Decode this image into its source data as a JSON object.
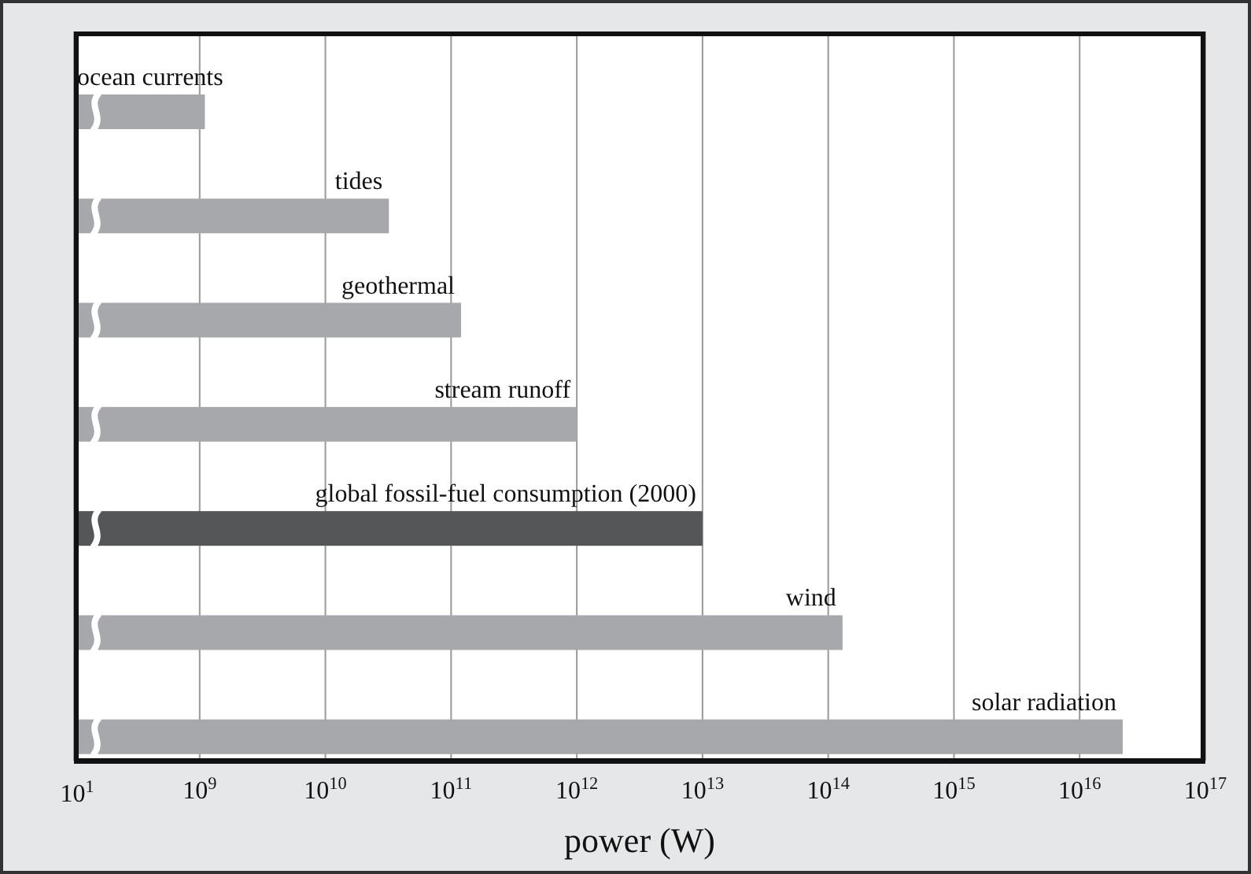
{
  "chart_data": {
    "type": "bar",
    "orientation": "horizontal",
    "log": "x",
    "categories": [
      "ocean currents",
      "tides",
      "geothermal",
      "stream runoff",
      "global fossil-fuel consumption (2000)",
      "wind",
      "solar radiation"
    ],
    "values": [
      1100000000.0,
      32000000000.0,
      120000000000.0,
      1000000000000.0,
      10000000000000.0,
      130000000000000.0,
      2.2e+16
    ],
    "colors": [
      "#a7a8ab",
      "#a7a8ab",
      "#a7a8ab",
      "#a7a8ab",
      "#555658",
      "#a7a8ab",
      "#a7a8ab"
    ],
    "xlim": [
      100000000.0,
      1e+17
    ],
    "annotations": [
      "10$^{1}$"
    ],
    "xticks": [
      {
        "value": 1000000000.0,
        "label": "10$^{9}$"
      },
      {
        "value": 10000000000.0,
        "label": "10$^{10}$"
      },
      {
        "value": 100000000000.0,
        "label": "10$^{11}$"
      },
      {
        "value": 1000000000000.0,
        "label": "10$^{12}$"
      },
      {
        "value": 10000000000000.0,
        "label": "10$^{13}$"
      },
      {
        "value": 100000000000000.0,
        "label": "10$^{14}$"
      },
      {
        "value": 1000000000000000.0,
        "label": "10$^{15}$"
      },
      {
        "value": 1e+16,
        "label": "10$^{16}$"
      },
      {
        "value": 1e+17,
        "label": "10$^{17}$"
      }
    ],
    "xlabel": "power (W)",
    "grid": "x"
  }
}
